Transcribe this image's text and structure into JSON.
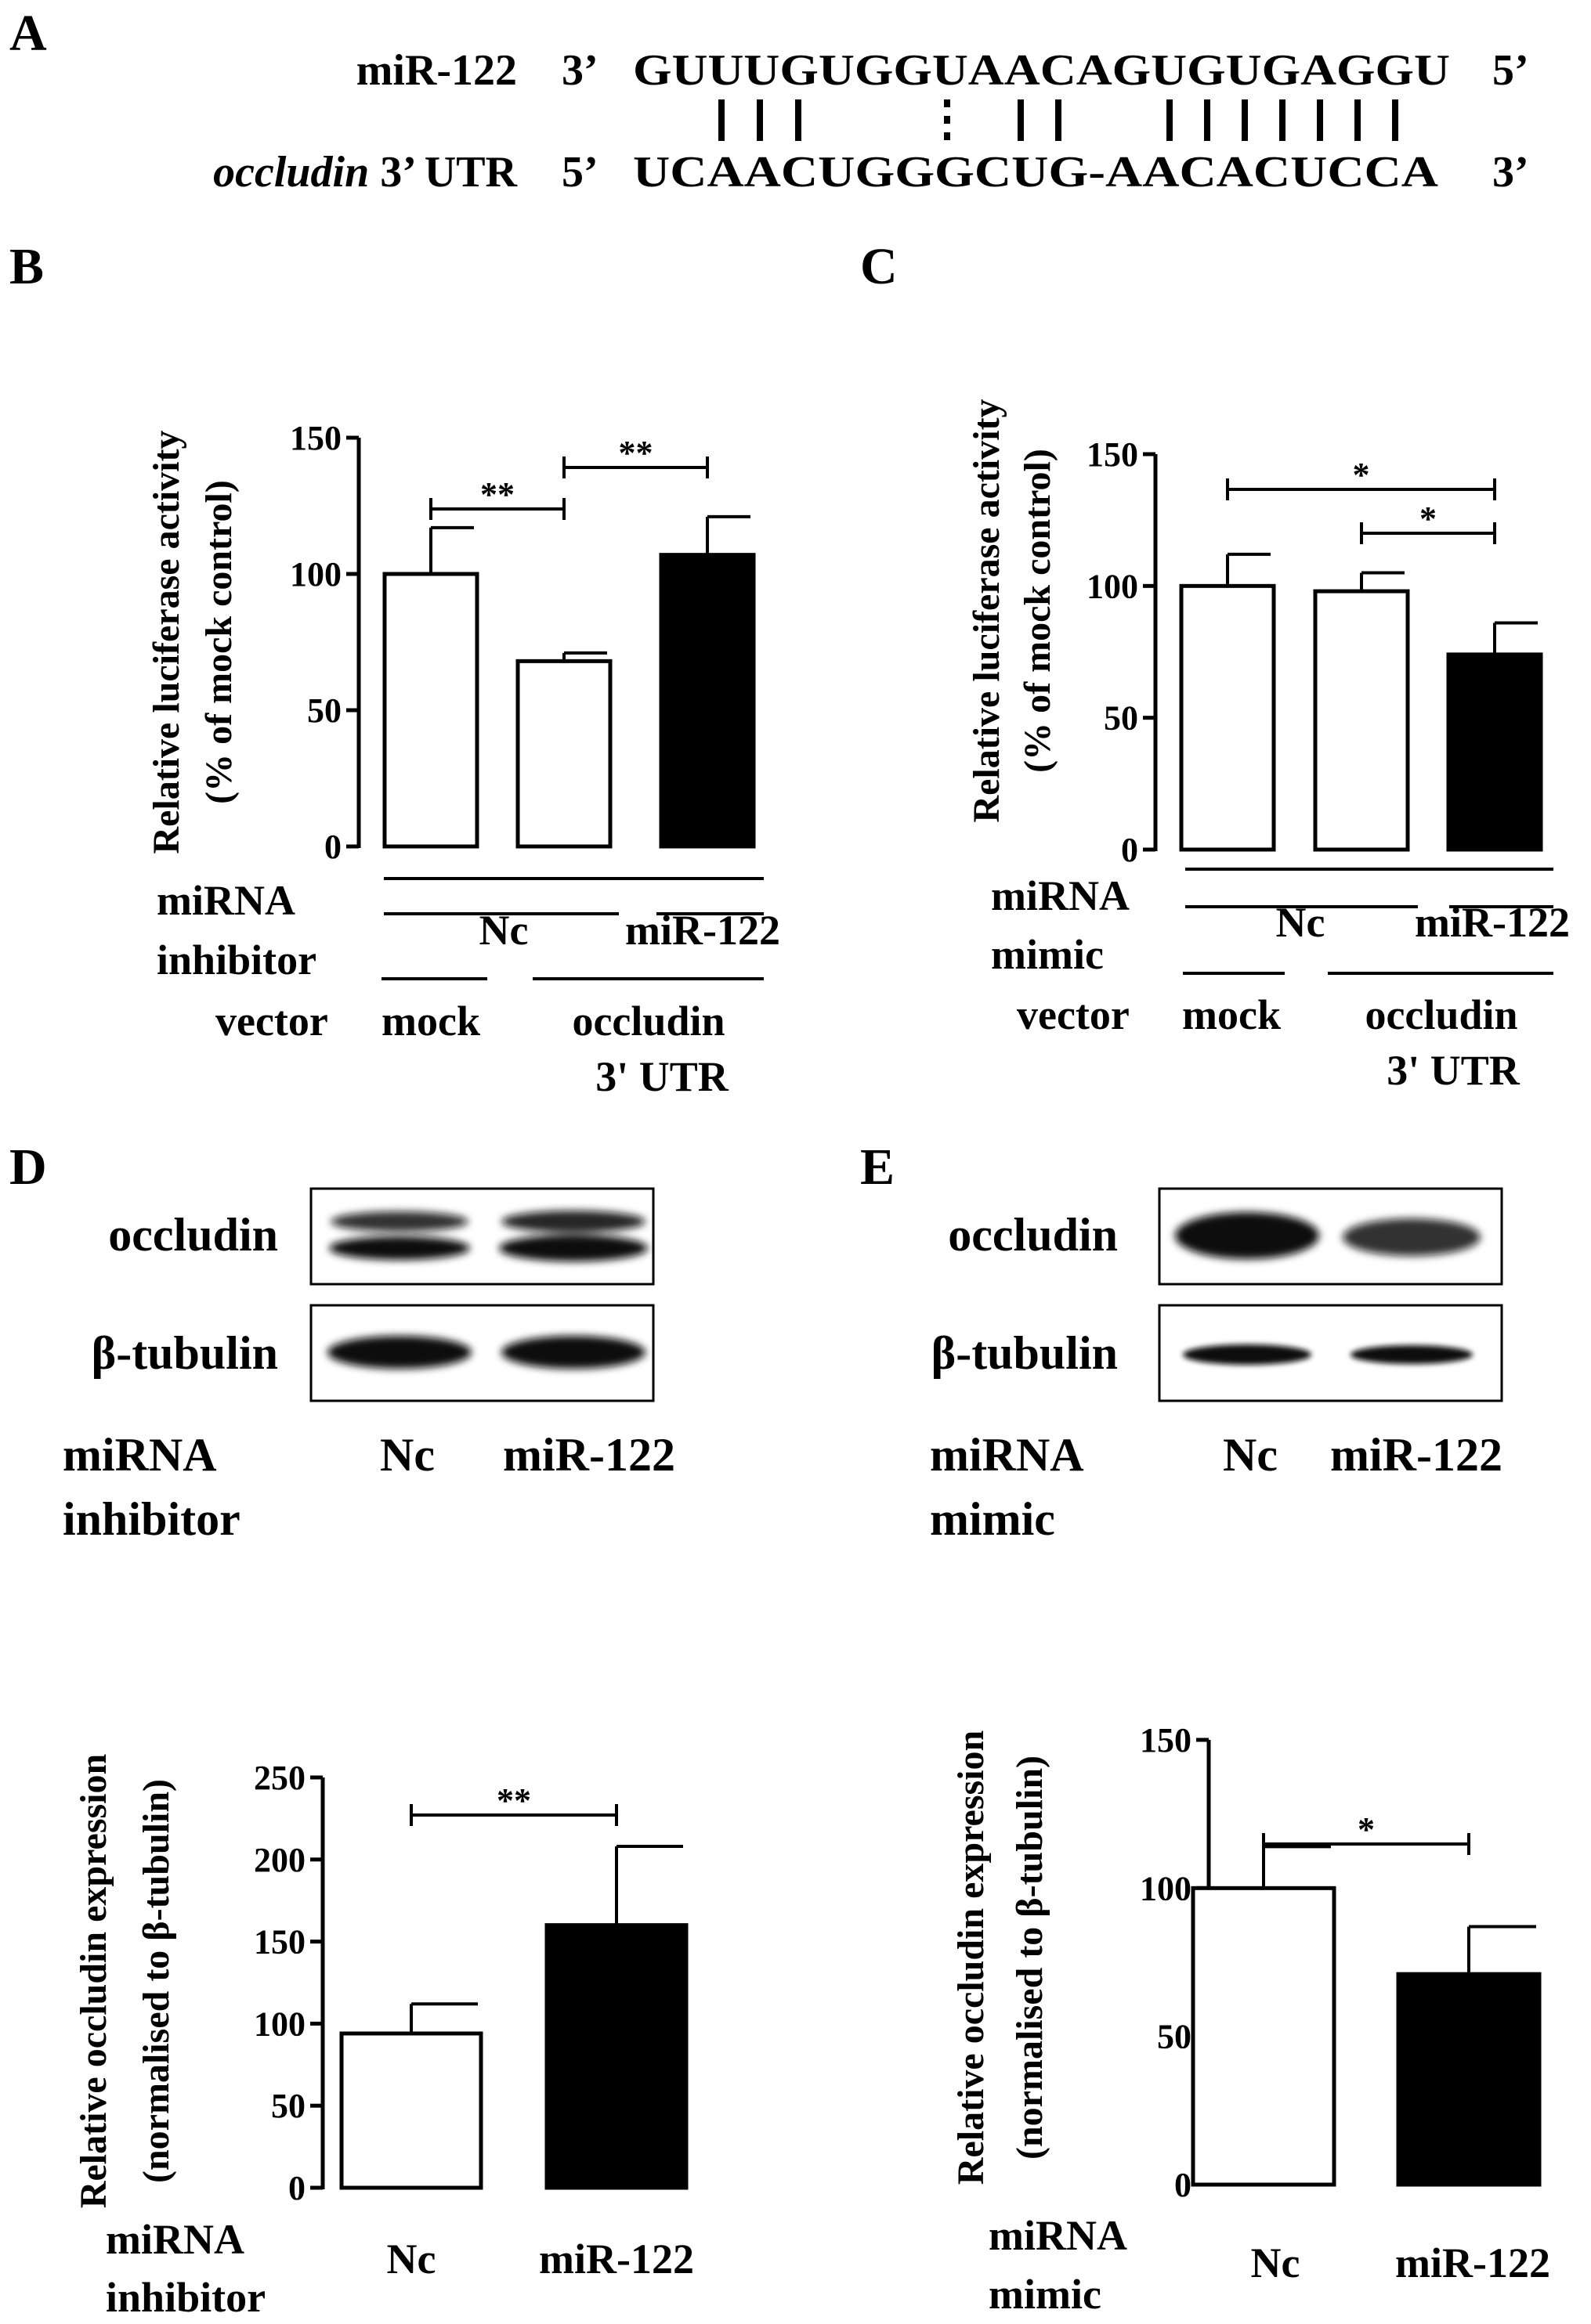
{
  "panels": {
    "A": "A",
    "B": "B",
    "C": "C",
    "D": "D",
    "E": "E"
  },
  "sequence": {
    "mir_label": "miR-122",
    "mir_left_end": "3’",
    "mir_seq": "GUUUGUGGUAACAGUGUGAGGU",
    "mir_right_end": "5’",
    "target_label_italic": "occludin",
    "target_label_rest": " 3’ UTR",
    "target_left_end": "5’",
    "target_seq": "UCAACUGGGCUG-AACACUCCA",
    "target_right_end": "3’"
  },
  "panel_B_labels": {
    "row_miRNA": "miRNA",
    "row_inhibitor": "inhibitor",
    "row_vector": "vector",
    "nc": "Nc",
    "mir122": "miR-122",
    "mock": "mock",
    "occludin": "occludin",
    "utr": "3' UTR"
  },
  "panel_C_labels": {
    "row_miRNA": "miRNA",
    "row_mimic": "mimic",
    "row_vector": "vector",
    "nc": "Nc",
    "mir122": "miR-122",
    "mock": "mock",
    "occludin": "occludin",
    "utr": "3' UTR"
  },
  "blot_D": {
    "band1": "occludin",
    "band2": "β-tubulin",
    "row_miRNA": "miRNA",
    "row_inhibitor": "inhibitor",
    "lane1": "Nc",
    "lane2": "miR-122"
  },
  "blot_E": {
    "band1": "occludin",
    "band2": "β-tubulin",
    "row_miRNA": "miRNA",
    "row_mimic": "mimic",
    "lane1": "Nc",
    "lane2": "miR-122"
  },
  "bottom_D_labels": {
    "row_miRNA": "miRNA",
    "row_inhibitor": "inhibitor",
    "nc": "Nc",
    "mir122": "miR-122"
  },
  "bottom_E_labels": {
    "row_miRNA": "miRNA",
    "row_mimic": "mimic",
    "nc": "Nc",
    "mir122": "miR-122"
  },
  "chart_data": [
    {
      "panel": "B",
      "type": "bar",
      "ylabel_line1": "Relative luciferase activity",
      "ylabel_line2": "(% of mock control)",
      "ylim": [
        0,
        150
      ],
      "yticks": [
        "0",
        "50",
        "100",
        "150"
      ],
      "categories": [
        "mock + Nc",
        "occludin 3' UTR + Nc",
        "occludin 3' UTR + miR-122"
      ],
      "values": [
        100,
        68,
        107
      ],
      "errors": [
        17,
        3,
        14
      ],
      "fills": [
        "#ffffff",
        "#ffffff",
        "#000000"
      ],
      "significance": [
        {
          "from": 0,
          "to": 1,
          "label": "**"
        },
        {
          "from": 1,
          "to": 2,
          "label": "**"
        }
      ]
    },
    {
      "panel": "C",
      "type": "bar",
      "ylabel_line1": "Relative luciferase activity",
      "ylabel_line2": "(% of mock control)",
      "ylim": [
        0,
        150
      ],
      "yticks": [
        "0",
        "50",
        "100",
        "150"
      ],
      "categories": [
        "mock + Nc",
        "occludin 3' UTR + Nc",
        "occludin 3' UTR + miR-122"
      ],
      "values": [
        100,
        98,
        74
      ],
      "errors": [
        12,
        7,
        12
      ],
      "fills": [
        "#ffffff",
        "#ffffff",
        "#000000"
      ],
      "significance": [
        {
          "from": 0,
          "to": 2,
          "label": "*"
        },
        {
          "from": 1,
          "to": 2,
          "label": "*"
        }
      ]
    },
    {
      "panel": "D",
      "type": "bar",
      "ylabel_line1": "Relative occludin expression",
      "ylabel_line2": "(normalised to β-tubulin)",
      "ylim": [
        0,
        250
      ],
      "yticks": [
        "0",
        "50",
        "100",
        "150",
        "200",
        "250"
      ],
      "categories": [
        "Nc",
        "miR-122"
      ],
      "values": [
        94,
        160
      ],
      "errors": [
        18,
        48
      ],
      "fills": [
        "#ffffff",
        "#000000"
      ],
      "significance": [
        {
          "from": 0,
          "to": 1,
          "label": "**"
        }
      ]
    },
    {
      "panel": "E",
      "type": "bar",
      "ylabel_line1": "Relative occludin expression",
      "ylabel_line2": "(normalised to β-tubulin)",
      "ylim": [
        0,
        150
      ],
      "yticks": [
        "0",
        "50",
        "100",
        "150"
      ],
      "categories": [
        "Nc",
        "miR-122"
      ],
      "values": [
        100,
        71
      ],
      "errors": [
        14,
        16
      ],
      "fills": [
        "#ffffff",
        "#000000"
      ],
      "significance": [
        {
          "from": 0,
          "to": 1,
          "label": "*"
        }
      ]
    }
  ]
}
